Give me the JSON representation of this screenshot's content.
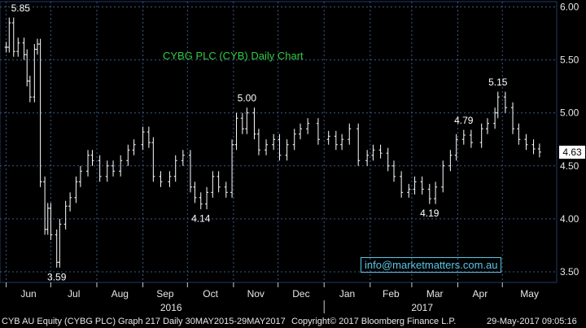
{
  "chart_data": {
    "type": "ohlc",
    "title": "CYBG PLC (CYB) Daily Chart",
    "y_axis": {
      "ticks": [
        "6.00",
        "5.50",
        "5.00",
        "4.50",
        "4.00",
        "3.50"
      ],
      "ylim": [
        3.4,
        6.05
      ],
      "position": "right"
    },
    "x_axis": {
      "months": [
        "Jun",
        "Jul",
        "Aug",
        "Sep",
        "Oct",
        "Nov",
        "Dec",
        "Jan",
        "Feb",
        "Mar",
        "Apr",
        "May"
      ],
      "years": [
        "2016",
        "2017"
      ]
    },
    "series": [
      {
        "values": [
          [
            "2016-06-01",
            5.62
          ],
          [
            "2016-06-03",
            5.85
          ],
          [
            "2016-06-06",
            5.58
          ],
          [
            "2016-06-09",
            5.66
          ],
          [
            "2016-06-13",
            5.55
          ],
          [
            "2016-06-15",
            5.3
          ],
          [
            "2016-06-17",
            5.15
          ],
          [
            "2016-06-20",
            5.6
          ],
          [
            "2016-06-22",
            5.65
          ],
          [
            "2016-06-24",
            4.35
          ],
          [
            "2016-06-27",
            3.9
          ],
          [
            "2016-06-29",
            4.1
          ],
          [
            "2016-07-01",
            3.85
          ],
          [
            "2016-07-05",
            3.59
          ],
          [
            "2016-07-07",
            3.95
          ],
          [
            "2016-07-11",
            4.12
          ],
          [
            "2016-07-14",
            4.2
          ],
          [
            "2016-07-18",
            4.35
          ],
          [
            "2016-07-21",
            4.45
          ],
          [
            "2016-07-26",
            4.6
          ],
          [
            "2016-07-29",
            4.55
          ],
          [
            "2016-08-03",
            4.4
          ],
          [
            "2016-08-08",
            4.5
          ],
          [
            "2016-08-12",
            4.45
          ],
          [
            "2016-08-17",
            4.55
          ],
          [
            "2016-08-22",
            4.65
          ],
          [
            "2016-08-26",
            4.7
          ],
          [
            "2016-09-01",
            4.82
          ],
          [
            "2016-09-05",
            4.72
          ],
          [
            "2016-09-08",
            4.4
          ],
          [
            "2016-09-13",
            4.35
          ],
          [
            "2016-09-19",
            4.4
          ],
          [
            "2016-09-23",
            4.55
          ],
          [
            "2016-09-28",
            4.6
          ],
          [
            "2016-10-03",
            4.3
          ],
          [
            "2016-10-06",
            4.2
          ],
          [
            "2016-10-10",
            4.14
          ],
          [
            "2016-10-14",
            4.25
          ],
          [
            "2016-10-18",
            4.4
          ],
          [
            "2016-10-22",
            4.3
          ],
          [
            "2016-10-27",
            4.25
          ],
          [
            "2016-10-31",
            4.7
          ],
          [
            "2016-11-03",
            4.95
          ],
          [
            "2016-11-07",
            4.85
          ],
          [
            "2016-11-10",
            5.0
          ],
          [
            "2016-11-15",
            4.8
          ],
          [
            "2016-11-18",
            4.65
          ],
          [
            "2016-11-23",
            4.7
          ],
          [
            "2016-11-28",
            4.75
          ],
          [
            "2016-12-02",
            4.6
          ],
          [
            "2016-12-07",
            4.7
          ],
          [
            "2016-12-12",
            4.8
          ],
          [
            "2016-12-16",
            4.85
          ],
          [
            "2016-12-21",
            4.9
          ],
          [
            "2016-12-28",
            4.75
          ],
          [
            "2017-01-04",
            4.78
          ],
          [
            "2017-01-09",
            4.7
          ],
          [
            "2017-01-13",
            4.75
          ],
          [
            "2017-01-18",
            4.85
          ],
          [
            "2017-01-24",
            4.55
          ],
          [
            "2017-01-30",
            4.6
          ],
          [
            "2017-02-03",
            4.65
          ],
          [
            "2017-02-08",
            4.62
          ],
          [
            "2017-02-13",
            4.5
          ],
          [
            "2017-02-17",
            4.4
          ],
          [
            "2017-02-22",
            4.25
          ],
          [
            "2017-02-27",
            4.28
          ],
          [
            "2017-03-03",
            4.35
          ],
          [
            "2017-03-08",
            4.28
          ],
          [
            "2017-03-13",
            4.19
          ],
          [
            "2017-03-17",
            4.3
          ],
          [
            "2017-03-22",
            4.5
          ],
          [
            "2017-03-27",
            4.6
          ],
          [
            "2017-03-31",
            4.75
          ],
          [
            "2017-04-05",
            4.79
          ],
          [
            "2017-04-10",
            4.72
          ],
          [
            "2017-04-17",
            4.85
          ],
          [
            "2017-04-21",
            4.9
          ],
          [
            "2017-04-26",
            5.0
          ],
          [
            "2017-04-28",
            5.15
          ],
          [
            "2017-05-03",
            5.05
          ],
          [
            "2017-05-08",
            4.85
          ],
          [
            "2017-05-12",
            4.75
          ],
          [
            "2017-05-17",
            4.7
          ],
          [
            "2017-05-22",
            4.66
          ],
          [
            "2017-05-26",
            4.63
          ]
        ]
      }
    ],
    "annotations": [
      {
        "date": "2016-06-03",
        "value": 5.85,
        "text": "5.85"
      },
      {
        "date": "2016-07-05",
        "value": 3.59,
        "text": "3.59"
      },
      {
        "date": "2016-10-10",
        "value": 4.14,
        "text": "4.14"
      },
      {
        "date": "2016-11-10",
        "value": 5.0,
        "text": "5.00"
      },
      {
        "date": "2017-03-13",
        "value": 4.19,
        "text": "4.19"
      },
      {
        "date": "2017-04-05",
        "value": 4.79,
        "text": "4.79"
      },
      {
        "date": "2017-04-28",
        "value": 5.15,
        "text": "5.15"
      }
    ],
    "last_value": "4.63",
    "grid": true
  },
  "watermark": "info@marketmatters.com.au",
  "footer": {
    "left": "CYB AU Equity (CYBG PLC) Graph 217  Daily 30MAY2015-29MAY2017",
    "middle": "Copyright© 2017 Bloomberg Finance L.P.",
    "right": "29-May-2017 09:05:16"
  },
  "colors": {
    "background": "#000000",
    "grid": "#3a5a8c",
    "price": "#ffffff",
    "title": "#2ecc40",
    "watermark": "#59c7e6"
  }
}
